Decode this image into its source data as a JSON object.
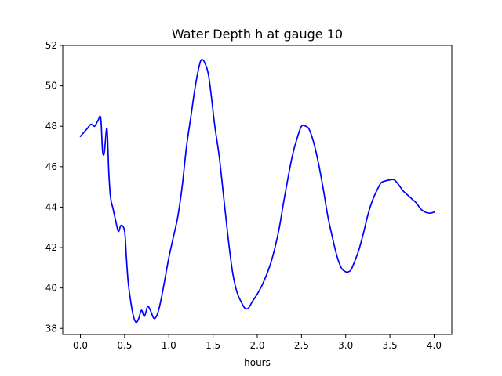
{
  "chart_data": {
    "type": "line",
    "title": "Water Depth h at gauge 10",
    "xlabel": "hours",
    "ylabel": "",
    "xlim": [
      -0.2,
      4.2
    ],
    "ylim": [
      37.7,
      52.0
    ],
    "x_ticks": [
      0.0,
      0.5,
      1.0,
      1.5,
      2.0,
      2.5,
      3.0,
      3.5,
      4.0
    ],
    "x_tick_labels": [
      "0.0",
      "0.5",
      "1.0",
      "1.5",
      "2.0",
      "2.5",
      "3.0",
      "3.5",
      "4.0"
    ],
    "y_ticks": [
      38,
      40,
      42,
      44,
      46,
      48,
      50,
      52
    ],
    "y_tick_labels": [
      "38",
      "40",
      "42",
      "44",
      "46",
      "48",
      "50",
      "52"
    ],
    "grid": false,
    "legend": "none",
    "series": [
      {
        "color": "#0000ff",
        "x": [
          0.0,
          0.04,
          0.08,
          0.12,
          0.16,
          0.2,
          0.23,
          0.25,
          0.27,
          0.3,
          0.32,
          0.34,
          0.37,
          0.4,
          0.43,
          0.46,
          0.5,
          0.52,
          0.54,
          0.57,
          0.6,
          0.63,
          0.66,
          0.69,
          0.72,
          0.74,
          0.76,
          0.78,
          0.8,
          0.83,
          0.86,
          0.89,
          0.92,
          0.95,
          1.0,
          1.05,
          1.1,
          1.15,
          1.2,
          1.25,
          1.3,
          1.35,
          1.38,
          1.42,
          1.45,
          1.48,
          1.52,
          1.57,
          1.62,
          1.67,
          1.72,
          1.77,
          1.82,
          1.86,
          1.9,
          1.94,
          1.97,
          2.0,
          2.05,
          2.1,
          2.15,
          2.2,
          2.25,
          2.3,
          2.35,
          2.4,
          2.45,
          2.5,
          2.55,
          2.58,
          2.61,
          2.65,
          2.7,
          2.75,
          2.8,
          2.85,
          2.9,
          2.95,
          3.0,
          3.03,
          3.06,
          3.1,
          3.15,
          3.2,
          3.25,
          3.3,
          3.35,
          3.4,
          3.45,
          3.5,
          3.55,
          3.6,
          3.65,
          3.7,
          3.75,
          3.8,
          3.85,
          3.9,
          3.95,
          4.0
        ],
        "values": [
          47.5,
          47.7,
          47.9,
          48.1,
          48.0,
          48.3,
          48.4,
          46.8,
          46.7,
          47.9,
          45.8,
          44.5,
          43.9,
          43.3,
          42.8,
          43.1,
          42.8,
          41.5,
          40.3,
          39.3,
          38.6,
          38.3,
          38.5,
          38.9,
          38.6,
          38.8,
          39.1,
          39.0,
          38.8,
          38.5,
          38.6,
          39.0,
          39.6,
          40.3,
          41.5,
          42.5,
          43.5,
          45.0,
          47.0,
          48.5,
          50.0,
          51.1,
          51.3,
          51.0,
          50.5,
          49.5,
          48.0,
          46.5,
          44.5,
          42.5,
          40.8,
          39.8,
          39.3,
          39.0,
          39.0,
          39.3,
          39.5,
          39.7,
          40.1,
          40.6,
          41.2,
          42.0,
          43.0,
          44.3,
          45.5,
          46.6,
          47.4,
          48.0,
          48.0,
          47.9,
          47.6,
          47.0,
          46.0,
          44.8,
          43.5,
          42.5,
          41.6,
          41.0,
          40.8,
          40.8,
          40.9,
          41.3,
          41.9,
          42.7,
          43.6,
          44.3,
          44.8,
          45.2,
          45.3,
          45.35,
          45.35,
          45.1,
          44.8,
          44.6,
          44.4,
          44.2,
          43.9,
          43.75,
          43.7,
          43.75
        ]
      }
    ]
  }
}
